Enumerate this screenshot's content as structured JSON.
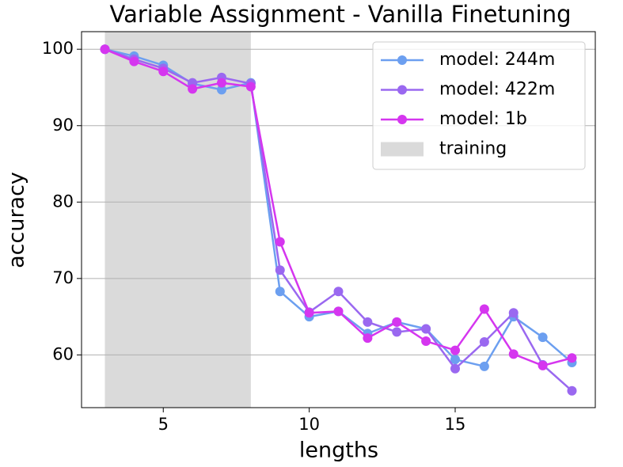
{
  "chart_data": {
    "type": "line",
    "title": "Variable Assignment - Vanilla Finetuning",
    "x_label": "lengths",
    "y_label": "accuracy",
    "x": [
      3,
      4,
      5,
      6,
      7,
      8,
      9,
      10,
      11,
      12,
      13,
      14,
      15,
      16,
      17,
      18,
      19
    ],
    "series": [
      {
        "name": "model: 244m",
        "color": "#6c9ff0",
        "values": [
          100,
          99.1,
          97.9,
          95.5,
          94.7,
          95.6,
          68.3,
          65.0,
          65.7,
          62.8,
          64.3,
          63.4,
          59.4,
          58.5,
          65.0,
          62.3,
          59.0
        ]
      },
      {
        "name": "model: 422m",
        "color": "#9a68f0",
        "values": [
          100,
          98.7,
          97.5,
          95.6,
          96.3,
          95.5,
          71.1,
          65.6,
          68.3,
          64.3,
          63.0,
          63.4,
          58.2,
          61.7,
          65.5,
          58.7,
          55.3
        ]
      },
      {
        "name": "model: 1b",
        "color": "#d536ef",
        "values": [
          100,
          98.4,
          97.1,
          94.8,
          95.6,
          95.1,
          74.8,
          65.5,
          65.7,
          62.2,
          64.3,
          61.8,
          60.6,
          66.0,
          60.1,
          58.6,
          59.6
        ]
      }
    ],
    "span": {
      "name": "training",
      "xmin": 3,
      "xmax": 8,
      "color": "#dadada"
    },
    "xlim": [
      2.2,
      19.8
    ],
    "xticks": [
      5,
      10,
      15
    ],
    "ylim": [
      53.1,
      102.3
    ],
    "yticks": [
      60,
      70,
      80,
      90,
      100
    ],
    "grid": true,
    "legend": "upper right"
  }
}
